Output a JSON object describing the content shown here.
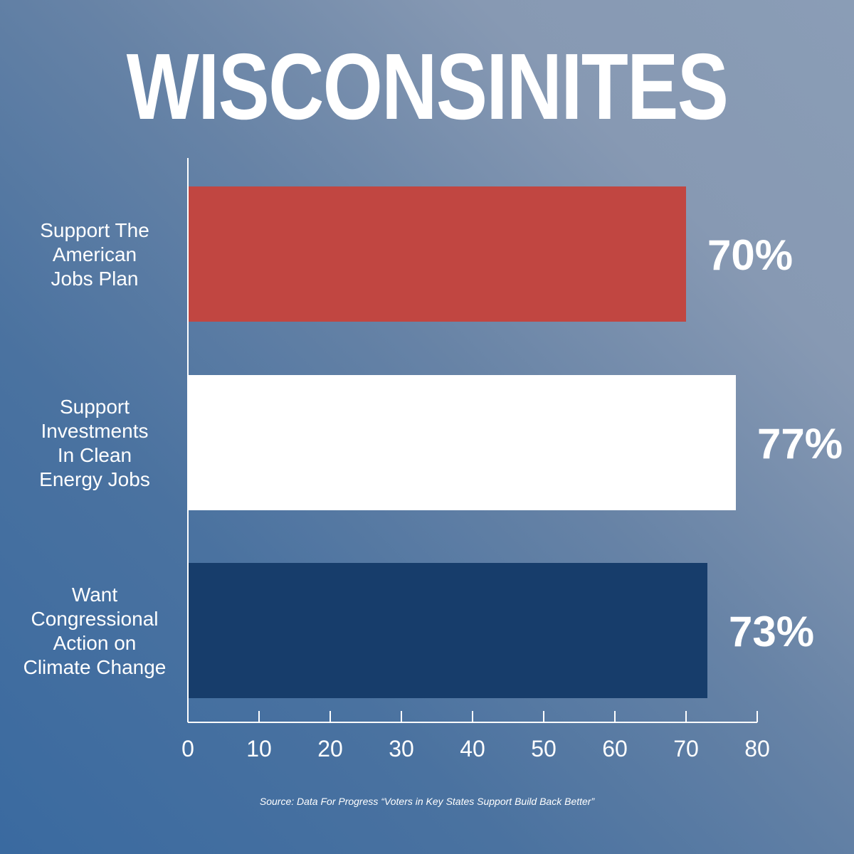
{
  "chart_data": {
    "type": "bar",
    "orientation": "horizontal",
    "title": "WISCONSINITES",
    "categories": [
      "Support The American Jobs Plan",
      "Support Investments In Clean Energy Jobs",
      "Want Congressional Action on Climate Change"
    ],
    "category_lines": [
      [
        "Support The",
        "American",
        "Jobs Plan"
      ],
      [
        "Support",
        "Investments",
        "In Clean",
        "Energy Jobs"
      ],
      [
        "Want",
        "Congressional",
        "Action on",
        "Climate Change"
      ]
    ],
    "values": [
      70,
      77,
      73
    ],
    "value_labels": [
      "70%",
      "77%",
      "73%"
    ],
    "bar_colors": [
      "#c14641",
      "#ffffff",
      "#173d6b"
    ],
    "xlim": [
      0,
      80
    ],
    "xticks": [
      0,
      10,
      20,
      30,
      40,
      50,
      60,
      70,
      80
    ],
    "xlabel": "",
    "ylabel": "",
    "grid": false
  },
  "source": "Source: Data For Progress “Voters in Key States Support Build Back Better”"
}
